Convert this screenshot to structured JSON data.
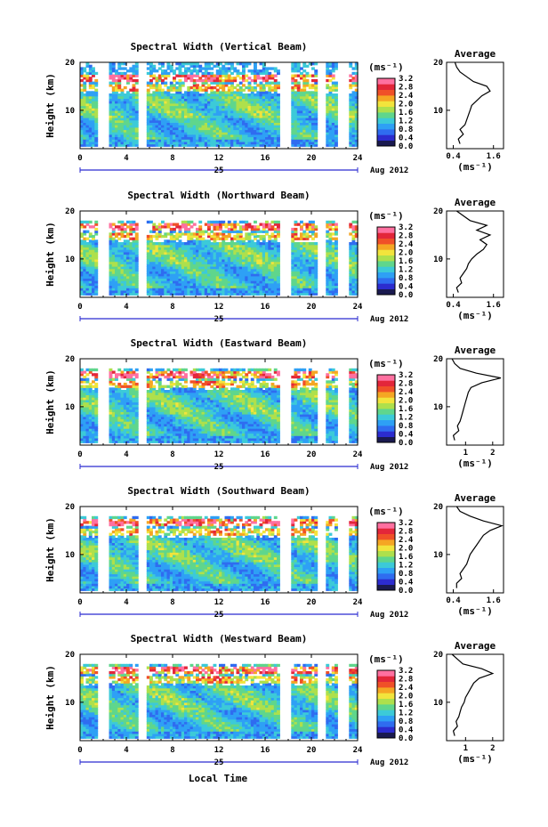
{
  "figure": {
    "xlabel": "Local Time",
    "date_label": "Aug 2012",
    "day_label": "25",
    "avg_title": "Average"
  },
  "colorbar": {
    "unit": "(ms⁻¹)",
    "ticks": [
      "0.0",
      "0.4",
      "0.8",
      "1.2",
      "1.6",
      "2.0",
      "2.4",
      "2.8",
      "3.2"
    ],
    "colors": [
      "#1a1a50",
      "#2c2ccf",
      "#2f6cf0",
      "#2ea0f5",
      "#3ccad8",
      "#5fd68c",
      "#aee04c",
      "#f2e43c",
      "#f5a623",
      "#f05028",
      "#e3263a",
      "#ff70a0"
    ]
  },
  "chart_data": [
    {
      "type": "heatmap",
      "title": "Spectral Width (Vertical Beam)",
      "ylabel": "Height (km)",
      "xlim": [
        0,
        24
      ],
      "ylim": [
        2,
        20
      ],
      "xticks": [
        0,
        4,
        8,
        12,
        16,
        20,
        24
      ],
      "yticks": [
        10,
        20
      ],
      "data_gaps_hours": [
        [
          1.6,
          2.5
        ],
        [
          5.1,
          5.8
        ],
        [
          17.3,
          18.2
        ],
        [
          20.5,
          21.2
        ],
        [
          22.3,
          23.2
        ]
      ],
      "top_km": 20,
      "average_profile": {
        "xlabel": "(ms⁻¹)",
        "xticks": [
          0.4,
          1.6
        ],
        "xlim": [
          0.2,
          1.9
        ],
        "height_km": [
          3,
          4,
          5,
          6,
          7,
          8,
          9,
          10,
          11,
          12,
          13,
          14,
          15,
          16,
          17,
          18,
          19,
          20
        ],
        "width_ms": [
          0.6,
          0.55,
          0.7,
          0.6,
          0.75,
          0.8,
          0.85,
          0.9,
          0.95,
          1.1,
          1.25,
          1.5,
          1.4,
          1.0,
          0.8,
          0.6,
          0.5,
          0.45
        ]
      }
    },
    {
      "type": "heatmap",
      "title": "Spectral Width (Northward Beam)",
      "ylabel": "Height (km)",
      "xlim": [
        0,
        24
      ],
      "ylim": [
        2,
        20
      ],
      "xticks": [
        0,
        4,
        8,
        12,
        16,
        20,
        24
      ],
      "yticks": [
        10,
        20
      ],
      "data_gaps_hours": [
        [
          1.6,
          2.5
        ],
        [
          5.1,
          5.8
        ],
        [
          17.3,
          18.2
        ],
        [
          20.5,
          21.2
        ],
        [
          22.3,
          23.2
        ]
      ],
      "top_km": 18,
      "average_profile": {
        "xlabel": "(ms⁻¹)",
        "xticks": [
          0.4,
          1.6
        ],
        "xlim": [
          0.2,
          1.9
        ],
        "height_km": [
          3,
          4,
          5,
          6,
          7,
          8,
          9,
          10,
          11,
          12,
          13,
          14,
          15,
          16,
          17,
          18,
          19,
          20
        ],
        "width_ms": [
          0.55,
          0.5,
          0.65,
          0.6,
          0.7,
          0.8,
          0.85,
          0.95,
          1.1,
          1.3,
          1.4,
          1.2,
          1.5,
          1.1,
          1.4,
          0.9,
          0.7,
          0.5
        ]
      }
    },
    {
      "type": "heatmap",
      "title": "Spectral Width (Eastward Beam)",
      "ylabel": "Height (km)",
      "xlim": [
        0,
        24
      ],
      "ylim": [
        2,
        20
      ],
      "xticks": [
        0,
        4,
        8,
        12,
        16,
        20,
        24
      ],
      "yticks": [
        10,
        20
      ],
      "data_gaps_hours": [
        [
          1.6,
          2.5
        ],
        [
          5.1,
          5.8
        ],
        [
          17.3,
          18.2
        ],
        [
          20.5,
          21.2
        ],
        [
          22.3,
          23.2
        ]
      ],
      "top_km": 18,
      "average_profile": {
        "xlabel": "(ms⁻¹)",
        "xticks": [
          1,
          2
        ],
        "xlim": [
          0.3,
          2.4
        ],
        "height_km": [
          3,
          4,
          5,
          6,
          7,
          8,
          9,
          10,
          11,
          12,
          13,
          14,
          15,
          16,
          17,
          18,
          19,
          20
        ],
        "width_ms": [
          0.6,
          0.55,
          0.75,
          0.7,
          0.8,
          0.85,
          0.9,
          0.95,
          1.0,
          1.05,
          1.1,
          1.2,
          1.6,
          2.3,
          1.4,
          0.8,
          0.6,
          0.5
        ]
      }
    },
    {
      "type": "heatmap",
      "title": "Spectral Width (Southward Beam)",
      "ylabel": "Height (km)",
      "xlim": [
        0,
        24
      ],
      "ylim": [
        2,
        20
      ],
      "xticks": [
        0,
        4,
        8,
        12,
        16,
        20,
        24
      ],
      "yticks": [
        10,
        20
      ],
      "data_gaps_hours": [
        [
          1.6,
          2.5
        ],
        [
          5.1,
          5.8
        ],
        [
          17.3,
          18.2
        ],
        [
          20.5,
          21.2
        ],
        [
          22.3,
          23.2
        ]
      ],
      "top_km": 18,
      "average_profile": {
        "xlabel": "(ms⁻¹)",
        "xticks": [
          0.4,
          1.6
        ],
        "xlim": [
          0.2,
          1.9
        ],
        "height_km": [
          3,
          4,
          5,
          6,
          7,
          8,
          9,
          10,
          11,
          12,
          13,
          14,
          15,
          16,
          17,
          18,
          19,
          20
        ],
        "width_ms": [
          0.5,
          0.5,
          0.65,
          0.6,
          0.7,
          0.8,
          0.85,
          0.9,
          1.0,
          1.1,
          1.2,
          1.3,
          1.5,
          1.85,
          1.3,
          0.9,
          0.6,
          0.5
        ]
      }
    },
    {
      "type": "heatmap",
      "title": "Spectral Width (Westward Beam)",
      "ylabel": "Height (km)",
      "xlim": [
        0,
        24
      ],
      "ylim": [
        2,
        20
      ],
      "xticks": [
        0,
        4,
        8,
        12,
        16,
        20,
        24
      ],
      "yticks": [
        10,
        20
      ],
      "data_gaps_hours": [
        [
          1.6,
          2.5
        ],
        [
          5.1,
          5.8
        ],
        [
          17.3,
          18.2
        ],
        [
          20.5,
          21.2
        ],
        [
          22.3,
          23.2
        ]
      ],
      "top_km": 18,
      "average_profile": {
        "xlabel": "(ms⁻¹)",
        "xticks": [
          1,
          2
        ],
        "xlim": [
          0.3,
          2.4
        ],
        "height_km": [
          3,
          4,
          5,
          6,
          7,
          8,
          9,
          10,
          11,
          12,
          13,
          14,
          15,
          16,
          17,
          18,
          19,
          20
        ],
        "width_ms": [
          0.6,
          0.55,
          0.7,
          0.65,
          0.75,
          0.8,
          0.85,
          0.95,
          1.0,
          1.1,
          1.2,
          1.3,
          1.5,
          2.0,
          1.6,
          0.9,
          0.7,
          0.5
        ]
      }
    }
  ]
}
